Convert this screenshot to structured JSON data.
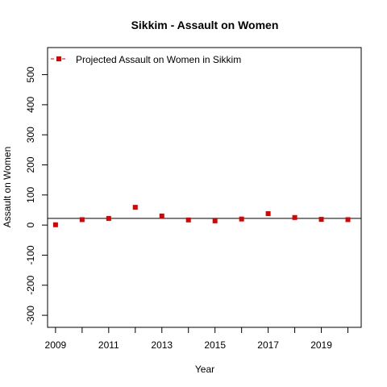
{
  "chart_data": {
    "type": "scatter",
    "title": "Sikkim  -  Assault on Women",
    "xlabel": "Year",
    "ylabel": "Assault on Women",
    "x_ticks": [
      "2009",
      "2011",
      "2013",
      "2015",
      "2017",
      "2019"
    ],
    "y_ticks": [
      "-300",
      "-200",
      "-100",
      "0",
      "100",
      "200",
      "300",
      "400",
      "500"
    ],
    "xlim": [
      2008.7,
      2020.5
    ],
    "ylim": [
      -340,
      590
    ],
    "legend": {
      "label": "Projected  Assault on Women  in  Sikkim",
      "position": "top-left"
    },
    "series": [
      {
        "name": "Projected  Assault on Women  in  Sikkim",
        "color": "#dd0000",
        "marker": "square",
        "x": [
          2009,
          2010,
          2011,
          2012,
          2013,
          2014,
          2015,
          2016,
          2017,
          2018,
          2019,
          2020
        ],
        "y": [
          1,
          18,
          22,
          59,
          30,
          17,
          14,
          20,
          38,
          25,
          19,
          18
        ]
      }
    ],
    "reference_lines": [
      {
        "type": "horizontal",
        "y": 22,
        "color": "#000000"
      }
    ]
  }
}
